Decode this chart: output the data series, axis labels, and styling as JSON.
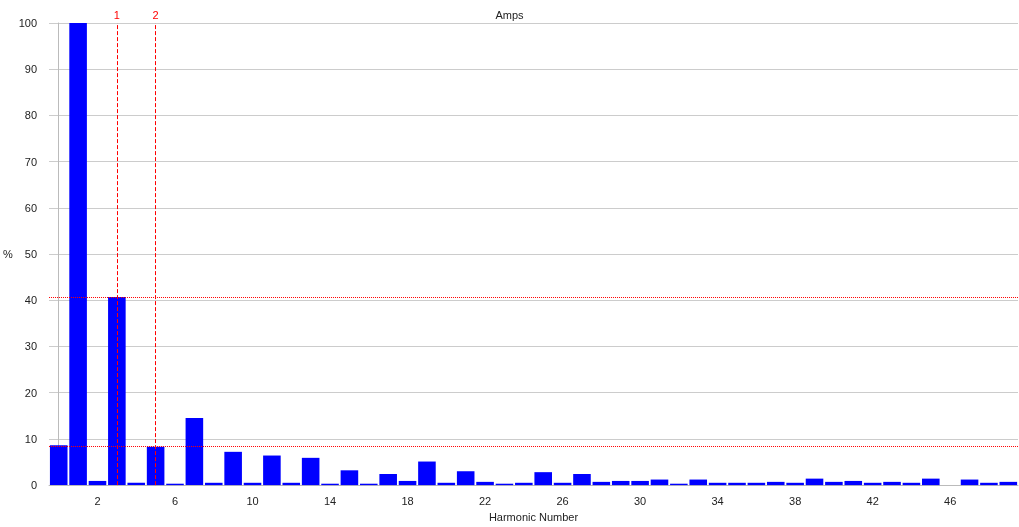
{
  "chart_data": {
    "type": "bar",
    "title": "Amps",
    "xlabel": "Harmonic Number",
    "ylabel": "%",
    "x": [
      0,
      1,
      2,
      3,
      4,
      5,
      6,
      7,
      8,
      9,
      10,
      11,
      12,
      13,
      14,
      15,
      16,
      17,
      18,
      19,
      20,
      21,
      22,
      23,
      24,
      25,
      26,
      27,
      28,
      29,
      30,
      31,
      32,
      33,
      34,
      35,
      36,
      37,
      38,
      39,
      40,
      41,
      42,
      43,
      44,
      45,
      46,
      47,
      48,
      49
    ],
    "values": [
      8.6,
      100,
      0.9,
      40.7,
      0.5,
      8.3,
      0.3,
      14.5,
      0.5,
      7.2,
      0.5,
      6.4,
      0.5,
      5.9,
      0.3,
      3.2,
      0.3,
      2.4,
      0.9,
      5.1,
      0.5,
      3.0,
      0.7,
      0.3,
      0.5,
      2.8,
      0.5,
      2.4,
      0.7,
      0.9,
      0.9,
      1.2,
      0.3,
      1.2,
      0.5,
      0.5,
      0.5,
      0.7,
      0.5,
      1.4,
      0.7,
      0.9,
      0.5,
      0.7,
      0.5,
      1.4,
      0,
      1.2,
      0.5,
      0.7
    ],
    "color": "#0000ff",
    "xlim": [
      -0.5,
      49.5
    ],
    "xticks": [
      2,
      6,
      10,
      14,
      18,
      22,
      26,
      30,
      34,
      38,
      42,
      46
    ],
    "ylim": [
      0,
      100
    ],
    "yticks": [
      0,
      10,
      20,
      30,
      40,
      50,
      60,
      70,
      80,
      90,
      100
    ],
    "grid": "y",
    "annotations": [
      {
        "text": "1",
        "x": 3,
        "y": 100
      },
      {
        "text": "2",
        "x": 5,
        "y": 100
      }
    ],
    "ref_lines": [
      {
        "axis": "x",
        "value": 3,
        "color": "#ff0000",
        "line_style": "dashed"
      },
      {
        "axis": "x",
        "value": 5,
        "color": "#ff0000",
        "line_style": "dashed"
      },
      {
        "axis": "y",
        "value": 40.7,
        "color": "#ff0000",
        "line_style": "dotted"
      },
      {
        "axis": "y",
        "value": 8.3,
        "color": "#ff0000",
        "line_style": "dotted"
      }
    ]
  }
}
